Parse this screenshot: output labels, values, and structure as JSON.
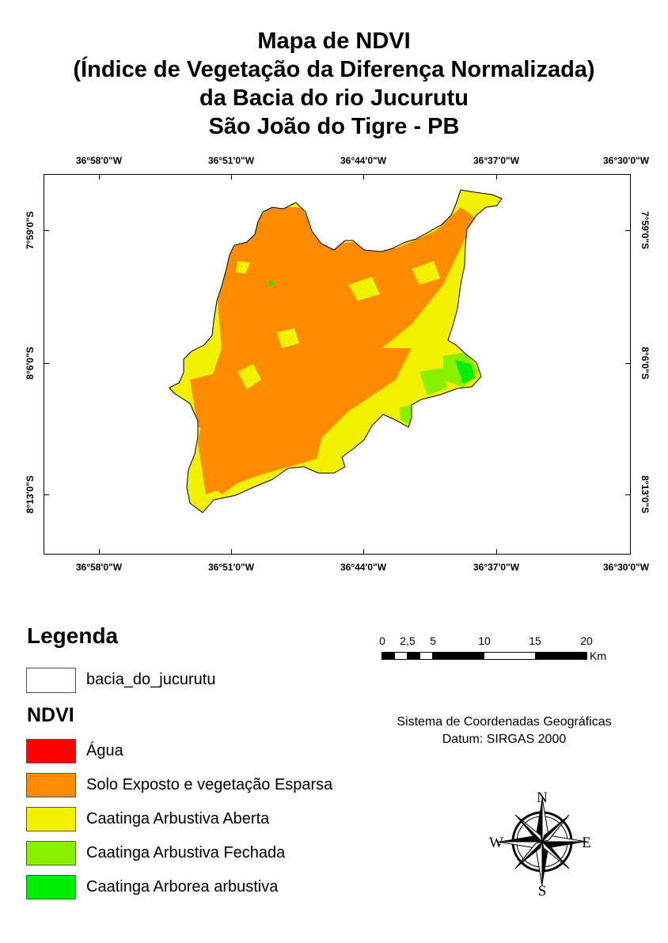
{
  "title": {
    "line1": "Mapa de NDVI",
    "line2": "(Índice de Vegetação da Diferença Normalizada)",
    "line3": "da Bacia do rio Jucurutu",
    "line4": "São João do Tigre - PB"
  },
  "grid": {
    "longitudes": [
      "36°58'0\"W",
      "36°51'0\"W",
      "36°44'0\"W",
      "36°37'0\"W",
      "36°30'0\"W"
    ],
    "latitudes": [
      "7°59'0\"S",
      "8°6'0\"S",
      "8°13'0\"S"
    ]
  },
  "legend": {
    "title": "Legenda",
    "basin_label": "bacia_do_jucurutu",
    "ndvi_title": "NDVI",
    "classes": [
      {
        "label": "Água",
        "color": "#ff0000"
      },
      {
        "label": "Solo Exposto e vegetação Esparsa",
        "color": "#ff8c00"
      },
      {
        "label": "Caatinga Arbustiva Aberta",
        "color": "#f2f200"
      },
      {
        "label": "Caatinga Arbustiva Fechada",
        "color": "#88f000"
      },
      {
        "label": "Caatinga Arborea arbustiva",
        "color": "#00ee00"
      }
    ]
  },
  "scalebar": {
    "labels": [
      "0",
      "2,5",
      "5",
      "10",
      "15",
      "20"
    ],
    "unit": "Km"
  },
  "coordinate_system": {
    "line1": "Sistema de Coordenadas Geográficas",
    "line2": "Datum: SIRGAS 2000"
  },
  "compass": {
    "n": "N",
    "s": "S",
    "e": "E",
    "w": "W"
  }
}
